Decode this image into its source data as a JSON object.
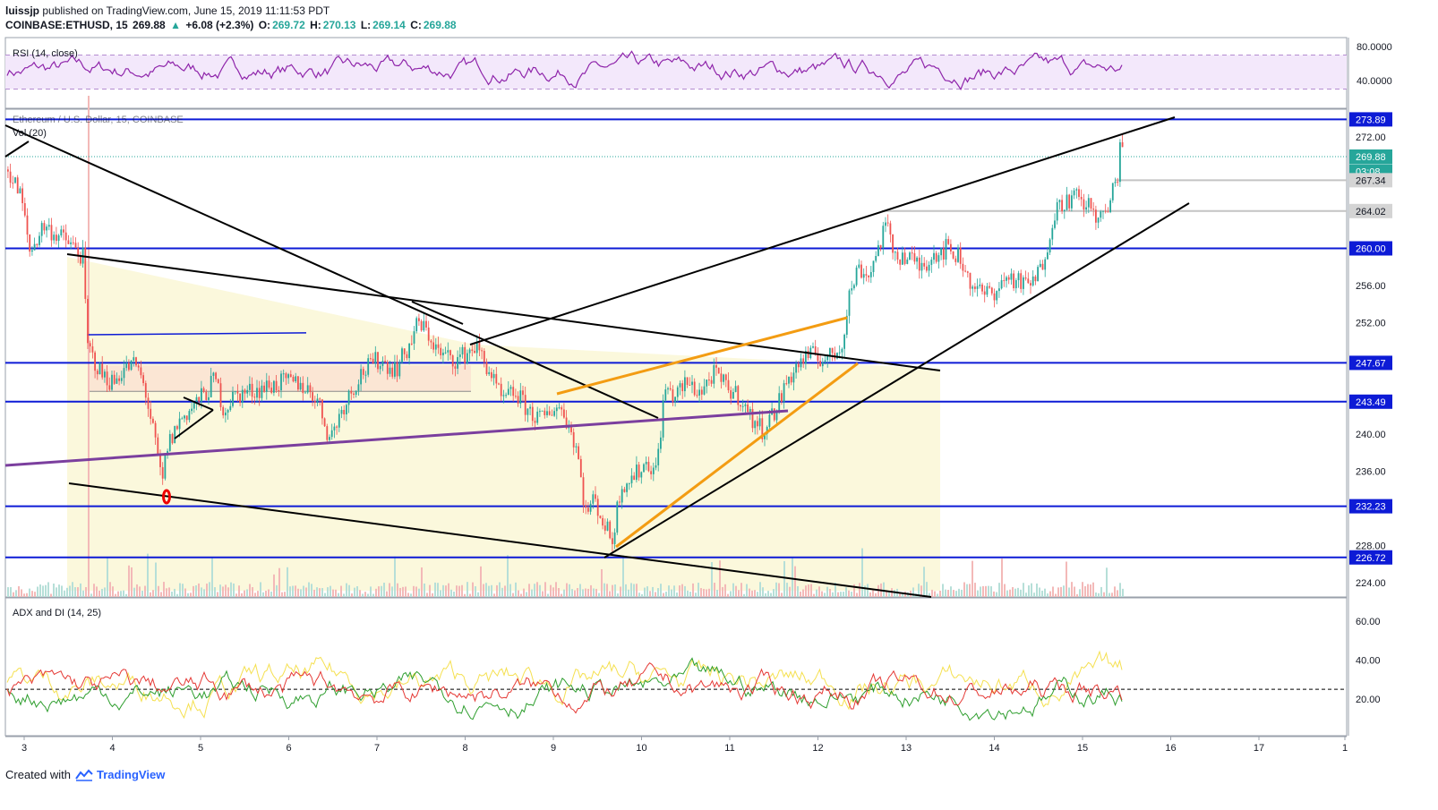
{
  "header": {
    "author": "luissjp",
    "published": "published on TradingView.com, June 15, 2019 11:11:53 PDT",
    "symbol": "COINBASE:ETHUSD, 15",
    "last": "269.88",
    "change": "+6.08 (+2.3%)",
    "o_label": "O:",
    "o": "269.72",
    "h_label": "H:",
    "h": "270.13",
    "l_label": "L:",
    "l": "269.14",
    "c_label": "C:",
    "c": "269.88"
  },
  "panes": {
    "rsi_label": "RSI (14, close)",
    "main_label": "Ethereum / U.S. Dollar, 15, COINBASE",
    "vol_label": "Vol (20)",
    "adx_label": "ADX and DI (14, 25)"
  },
  "footer": {
    "created": "Created with",
    "brand": "TradingView"
  },
  "colors": {
    "hline": "#0d1bd6",
    "trend": "#000000",
    "orange": "#f39c12",
    "purple": "#7b3f9e",
    "up": "#26a69a",
    "down": "#ef5350",
    "rsi": "#8e24aa",
    "adx_green": "#2e9e2e",
    "adx_red": "#e53935",
    "adx_yellow": "#f5e050"
  },
  "chart_data": [
    {
      "type": "line",
      "name": "RSI",
      "y_ticks": [
        "80.0000",
        "40.0000"
      ],
      "ylim": [
        25,
        85
      ],
      "band": [
        30,
        70
      ]
    },
    {
      "type": "candlestick",
      "x_ticks": [
        "3",
        "4",
        "5",
        "6",
        "7",
        "8",
        "9",
        "10",
        "11",
        "12",
        "13",
        "14",
        "15",
        "16",
        "17",
        "1"
      ],
      "y_ticks": [
        "272.00",
        "256.00",
        "252.00",
        "240.00",
        "236.00",
        "228.00",
        "224.00"
      ],
      "ylim": [
        222.5,
        276
      ],
      "price_labels": [
        {
          "value": 273.89,
          "text": "273.89",
          "kind": "hline"
        },
        {
          "value": 269.88,
          "text": "269.88",
          "kind": "last"
        },
        {
          "value": 268.3,
          "text": "03:08",
          "kind": "timer"
        },
        {
          "value": 267.34,
          "text": "267.34",
          "kind": "gray"
        },
        {
          "value": 264.02,
          "text": "264.02",
          "kind": "gray"
        },
        {
          "value": 260.0,
          "text": "260.00",
          "kind": "hline"
        },
        {
          "value": 247.67,
          "text": "247.67",
          "kind": "hline"
        },
        {
          "value": 243.49,
          "text": "243.49",
          "kind": "hline"
        },
        {
          "value": 232.23,
          "text": "232.23",
          "kind": "hline"
        },
        {
          "value": 226.72,
          "text": "226.72",
          "kind": "hline"
        }
      ],
      "path": [
        [
          2.8,
          268.5
        ],
        [
          2.95,
          265.5
        ],
        [
          3.05,
          259.5
        ],
        [
          3.2,
          262.5
        ],
        [
          3.35,
          261.5
        ],
        [
          3.5,
          260.5
        ],
        [
          3.65,
          259.0
        ],
        [
          3.7,
          249.5
        ],
        [
          3.85,
          246.5
        ],
        [
          4.0,
          245.5
        ],
        [
          4.1,
          247.0
        ],
        [
          4.25,
          247.5
        ],
        [
          4.35,
          245.0
        ],
        [
          4.45,
          240.0
        ],
        [
          4.55,
          234.5
        ],
        [
          4.6,
          238.5
        ],
        [
          4.75,
          241.5
        ],
        [
          4.9,
          243.0
        ],
        [
          5.05,
          244.5
        ],
        [
          5.15,
          246.0
        ],
        [
          5.25,
          242.5
        ],
        [
          5.35,
          244.0
        ],
        [
          5.5,
          244.5
        ],
        [
          5.7,
          245.0
        ],
        [
          5.9,
          245.5
        ],
        [
          6.1,
          245.5
        ],
        [
          6.3,
          244.0
        ],
        [
          6.45,
          239.5
        ],
        [
          6.6,
          243.0
        ],
        [
          6.8,
          246.5
        ],
        [
          7.0,
          248.0
        ],
        [
          7.2,
          247.0
        ],
        [
          7.35,
          249.5
        ],
        [
          7.45,
          252.0
        ],
        [
          7.55,
          251.0
        ],
        [
          7.7,
          248.5
        ],
        [
          7.9,
          248.0
        ],
        [
          8.1,
          249.5
        ],
        [
          8.25,
          247.0
        ],
        [
          8.4,
          243.5
        ],
        [
          8.55,
          244.5
        ],
        [
          8.7,
          242.5
        ],
        [
          8.85,
          241.5
        ],
        [
          9.0,
          243.0
        ],
        [
          9.1,
          242.5
        ],
        [
          9.25,
          238.5
        ],
        [
          9.35,
          231.5
        ],
        [
          9.45,
          233.0
        ],
        [
          9.55,
          230.5
        ],
        [
          9.65,
          228.5
        ],
        [
          9.75,
          234.5
        ],
        [
          9.9,
          235.5
        ],
        [
          10.05,
          237.0
        ],
        [
          10.15,
          236.0
        ],
        [
          10.25,
          245.0
        ],
        [
          10.35,
          244.0
        ],
        [
          10.5,
          245.5
        ],
        [
          10.65,
          244.5
        ],
        [
          10.8,
          246.5
        ],
        [
          10.95,
          245.0
        ],
        [
          11.1,
          244.0
        ],
        [
          11.2,
          242.0
        ],
        [
          11.35,
          240.5
        ],
        [
          11.5,
          242.5
        ],
        [
          11.65,
          246.0
        ],
        [
          11.8,
          248.0
        ],
        [
          11.95,
          248.5
        ],
        [
          12.1,
          248.0
        ],
        [
          12.25,
          249.5
        ],
        [
          12.35,
          255.5
        ],
        [
          12.45,
          258.0
        ],
        [
          12.55,
          257.0
        ],
        [
          12.65,
          259.5
        ],
        [
          12.75,
          262.5
        ],
        [
          12.85,
          259.5
        ],
        [
          13.0,
          259.0
        ],
        [
          13.15,
          258.0
        ],
        [
          13.3,
          259.5
        ],
        [
          13.45,
          260.0
        ],
        [
          13.6,
          259.0
        ],
        [
          13.7,
          256.5
        ],
        [
          13.85,
          255.0
        ],
        [
          14.0,
          255.5
        ],
        [
          14.15,
          257.0
        ],
        [
          14.3,
          256.0
        ],
        [
          14.45,
          256.5
        ],
        [
          14.55,
          259.0
        ],
        [
          14.65,
          263.5
        ],
        [
          14.75,
          265.0
        ],
        [
          14.9,
          265.5
        ],
        [
          15.05,
          264.5
        ],
        [
          15.2,
          263.0
        ],
        [
          15.3,
          265.0
        ],
        [
          15.38,
          268.0
        ],
        [
          15.42,
          272.5
        ],
        [
          15.46,
          269.9
        ]
      ]
    },
    {
      "type": "line",
      "name": "ADX and DI",
      "y_ticks": [
        "60.00",
        "40.00",
        "20.00"
      ],
      "ylim": [
        5,
        72
      ],
      "threshold": 25
    }
  ]
}
